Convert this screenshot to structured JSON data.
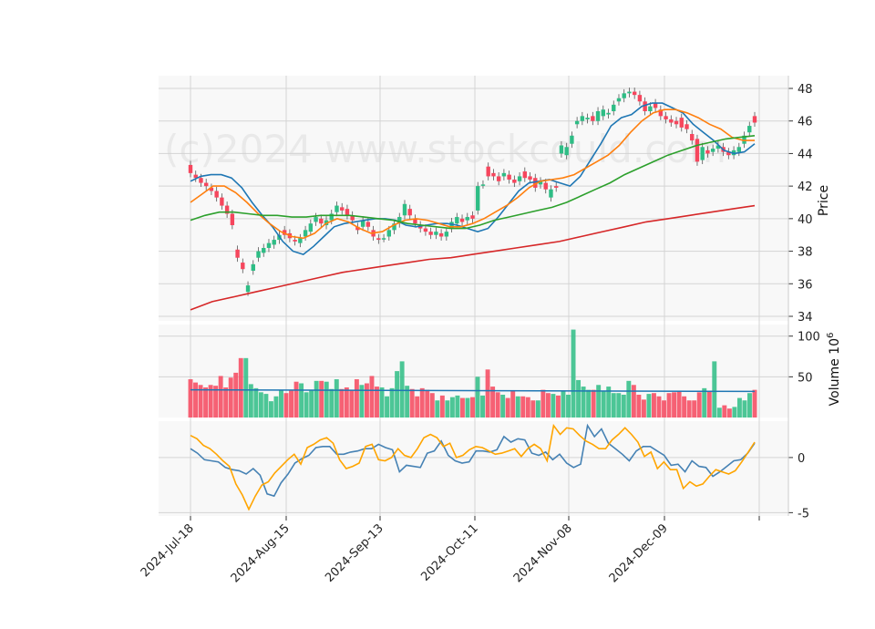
{
  "watermark": "(c)2024 www.stockcould.com",
  "chart_data": {
    "type": "candlestick",
    "grid": true,
    "price_panel": {
      "ylabel": "Price",
      "ylim": [
        34,
        48.5
      ],
      "yticks": [
        "34",
        "36",
        "38",
        "40",
        "42",
        "44",
        "46",
        "48"
      ],
      "colors": {
        "up": "#2ebd85",
        "down": "#f6465d"
      },
      "candles_description_open_close": [
        [
          43.3,
          42.8
        ],
        [
          42.7,
          42.5
        ],
        [
          42.5,
          42.2
        ],
        [
          42.2,
          42.0
        ],
        [
          41.9,
          41.7
        ],
        [
          41.7,
          41.3
        ],
        [
          41.3,
          40.8
        ],
        [
          40.8,
          40.3
        ],
        [
          40.3,
          39.6
        ],
        [
          38.1,
          37.6
        ],
        [
          37.3,
          36.9
        ],
        [
          35.5,
          35.9
        ],
        [
          36.8,
          37.2
        ],
        [
          37.6,
          38.0
        ],
        [
          37.9,
          38.2
        ],
        [
          38.2,
          38.5
        ],
        [
          38.4,
          38.7
        ],
        [
          38.7,
          39.0
        ],
        [
          39.3,
          39.0
        ],
        [
          39.1,
          38.8
        ],
        [
          38.7,
          38.6
        ],
        [
          38.5,
          38.8
        ],
        [
          38.9,
          39.3
        ],
        [
          39.2,
          39.7
        ],
        [
          39.8,
          40.1
        ],
        [
          40.0,
          39.7
        ],
        [
          39.6,
          39.9
        ],
        [
          39.9,
          40.3
        ],
        [
          40.4,
          40.8
        ],
        [
          40.7,
          40.5
        ],
        [
          40.6,
          40.2
        ],
        [
          40.2,
          39.9
        ],
        [
          39.5,
          39.3
        ],
        [
          39.5,
          39.9
        ],
        [
          39.8,
          39.5
        ],
        [
          39.3,
          38.9
        ],
        [
          38.8,
          38.7
        ],
        [
          38.8,
          38.8
        ],
        [
          38.9,
          39.3
        ],
        [
          39.3,
          39.7
        ],
        [
          39.7,
          40.1
        ],
        [
          40.2,
          40.9
        ],
        [
          40.6,
          40.2
        ],
        [
          40.0,
          39.7
        ],
        [
          39.6,
          39.4
        ],
        [
          39.4,
          39.2
        ],
        [
          39.2,
          39.0
        ],
        [
          39.0,
          39.2
        ],
        [
          39.1,
          38.9
        ],
        [
          38.9,
          39.2
        ],
        [
          39.4,
          39.8
        ],
        [
          39.7,
          40.1
        ],
        [
          40.0,
          39.8
        ],
        [
          39.9,
          40.1
        ],
        [
          40.2,
          40.0
        ],
        [
          40.5,
          42.0
        ],
        [
          42.1,
          42.1
        ],
        [
          43.2,
          42.6
        ],
        [
          42.8,
          42.6
        ],
        [
          42.6,
          42.3
        ],
        [
          42.6,
          42.8
        ],
        [
          42.7,
          42.4
        ],
        [
          42.4,
          42.2
        ],
        [
          42.3,
          42.6
        ],
        [
          42.9,
          42.5
        ],
        [
          42.6,
          42.4
        ],
        [
          42.5,
          41.9
        ],
        [
          42.1,
          42.3
        ],
        [
          42.2,
          41.8
        ],
        [
          41.3,
          41.8
        ],
        [
          42.0,
          41.9
        ],
        [
          44.0,
          44.5
        ],
        [
          43.9,
          44.4
        ],
        [
          44.6,
          45.1
        ],
        [
          45.8,
          46.0
        ],
        [
          46.0,
          46.3
        ],
        [
          46.1,
          46.2
        ],
        [
          46.3,
          46.0
        ],
        [
          46.0,
          46.6
        ],
        [
          46.3,
          46.7
        ],
        [
          46.4,
          46.5
        ],
        [
          46.6,
          47.0
        ],
        [
          47.2,
          47.4
        ],
        [
          47.4,
          47.7
        ],
        [
          47.7,
          47.8
        ],
        [
          47.8,
          47.6
        ],
        [
          47.6,
          47.2
        ],
        [
          47.2,
          46.6
        ],
        [
          46.6,
          46.9
        ],
        [
          47.1,
          46.8
        ],
        [
          46.7,
          46.3
        ],
        [
          46.3,
          46.1
        ],
        [
          46.1,
          45.9
        ],
        [
          46.0,
          45.8
        ],
        [
          46.2,
          45.6
        ],
        [
          45.8,
          45.5
        ],
        [
          45.2,
          44.8
        ],
        [
          44.9,
          43.5
        ],
        [
          43.6,
          44.4
        ],
        [
          44.2,
          44.0
        ],
        [
          44.1,
          44.3
        ],
        [
          44.3,
          44.5
        ],
        [
          44.4,
          44.1
        ],
        [
          44.1,
          43.9
        ],
        [
          43.9,
          44.2
        ],
        [
          44.1,
          44.4
        ],
        [
          44.6,
          45.1
        ],
        [
          45.3,
          45.7
        ],
        [
          46.3,
          45.9
        ]
      ],
      "moving_averages": [
        {
          "color": "#1f77b4",
          "points": [
            42.3,
            42.6,
            42.7,
            42.7,
            42.5,
            41.9,
            41.0,
            40.2,
            39.5,
            38.6,
            38.0,
            37.8,
            38.3,
            38.9,
            39.5,
            39.7,
            39.8,
            39.9,
            40.0,
            40.0,
            39.9,
            39.6,
            39.5,
            39.6,
            39.7,
            39.7,
            39.6,
            39.4,
            39.2,
            39.4,
            40.1,
            40.9,
            41.7,
            42.2,
            42.3,
            42.4,
            42.2,
            42.0,
            42.6,
            43.6,
            44.6,
            45.7,
            46.2,
            46.4,
            46.9,
            47.1,
            47.1,
            46.8,
            46.5,
            45.8,
            45.3,
            44.8,
            44.2,
            44.0,
            44.1,
            44.6
          ]
        },
        {
          "color": "#ff7f0e",
          "points": [
            41.0,
            41.5,
            42.0,
            42.0,
            41.6,
            41.0,
            40.3,
            39.7,
            39.2,
            38.9,
            38.8,
            39.1,
            39.7,
            40.0,
            39.8,
            39.4,
            39.1,
            39.2,
            39.6,
            39.9,
            40.0,
            39.9,
            39.7,
            39.5,
            39.5,
            39.7,
            40.0,
            40.4,
            40.8,
            41.3,
            41.9,
            42.3,
            42.4,
            42.5,
            42.7,
            43.1,
            43.5,
            43.9,
            44.5,
            45.3,
            46.0,
            46.5,
            46.7,
            46.7,
            46.5,
            46.2,
            45.8,
            45.5,
            45.0,
            44.8,
            44.8
          ]
        },
        {
          "color": "#2ca02c",
          "points": [
            39.9,
            40.2,
            40.4,
            40.4,
            40.3,
            40.2,
            40.2,
            40.1,
            40.1,
            40.2,
            40.2,
            40.2,
            40.1,
            40.0,
            39.9,
            39.7,
            39.6,
            39.5,
            39.4,
            39.4,
            39.6,
            39.9,
            40.1,
            40.3,
            40.5,
            40.7,
            41.0,
            41.4,
            41.8,
            42.2,
            42.7,
            43.1,
            43.5,
            43.9,
            44.2,
            44.5,
            44.7,
            44.9,
            45.0,
            45.1
          ]
        },
        {
          "color": "#d62728",
          "points": [
            34.4,
            34.9,
            35.2,
            35.5,
            35.8,
            36.1,
            36.4,
            36.7,
            36.9,
            37.1,
            37.3,
            37.5,
            37.6,
            37.8,
            38.0,
            38.2,
            38.4,
            38.6,
            38.9,
            39.2,
            39.5,
            39.8,
            40.0,
            40.2,
            40.4,
            40.6,
            40.8
          ]
        }
      ]
    },
    "volume_panel": {
      "ylabel": "Volume  10^6",
      "ylim": [
        0,
        112
      ],
      "yticks": [
        "50",
        "100"
      ],
      "ma_color": "#1f77b4",
      "ma_level": 34,
      "bars_description": [
        47,
        43,
        40,
        37,
        40,
        39,
        51,
        37,
        49,
        55,
        73,
        73,
        41,
        36,
        31,
        29,
        20,
        26,
        34,
        30,
        33,
        44,
        42,
        31,
        33,
        45,
        45,
        44,
        35,
        47,
        35,
        37,
        33,
        47,
        40,
        42,
        51,
        38,
        37,
        26,
        36,
        57,
        69,
        39,
        35,
        26,
        36,
        34,
        30,
        21,
        27,
        21,
        25,
        27,
        24,
        24,
        25,
        50,
        27,
        59,
        38,
        31,
        28,
        24,
        33,
        26,
        26,
        25,
        21,
        21,
        34,
        30,
        29,
        27,
        32,
        28,
        108,
        46,
        38,
        34,
        34,
        40,
        33,
        38,
        30,
        30,
        28,
        45,
        40,
        28,
        22,
        29,
        30,
        26,
        21,
        30,
        31,
        32,
        26,
        21,
        21,
        31,
        36,
        33,
        69,
        12,
        15,
        11,
        13,
        24,
        21,
        30,
        34
      ]
    },
    "oscillator_panel": {
      "ylim": [
        -5.3,
        3.3
      ],
      "yticks": [
        "-5",
        "0"
      ],
      "series": [
        {
          "color": "#4682b4",
          "values": [
            0.8,
            0.4,
            -0.2,
            -0.3,
            -0.4,
            -0.9,
            -1.1,
            -1.2,
            -1.5,
            -1.0,
            -1.6,
            -3.3,
            -3.5,
            -2.3,
            -1.5,
            -0.5,
            -0.1,
            0.2,
            0.9,
            1.0,
            1.0,
            0.3,
            0.3,
            0.5,
            0.6,
            0.8,
            0.8,
            1.2,
            0.9,
            0.7,
            -1.3,
            -0.7,
            -0.8,
            -0.9,
            0.4,
            0.6,
            1.5,
            0.2,
            -0.3,
            -0.5,
            -0.4,
            0.6,
            0.6,
            0.5,
            0.7,
            1.9,
            1.4,
            1.7,
            1.6,
            0.4,
            0.2,
            0.5,
            -0.2,
            0.3,
            -0.5,
            -0.9,
            -0.6,
            2.9,
            1.9,
            2.6,
            1.3,
            0.8,
            0.3,
            -0.3,
            0.6,
            1.0,
            1.0,
            0.6,
            0.2,
            -0.7,
            -0.6,
            -1.3,
            -0.3,
            -0.8,
            -0.9,
            -1.7,
            -1.3,
            -0.8,
            -0.3,
            -0.2,
            0.4,
            1.3
          ]
        },
        {
          "color": "#ffa500",
          "values": [
            2.0,
            1.7,
            1.1,
            0.8,
            0.3,
            -0.3,
            -0.8,
            -2.4,
            -3.4,
            -4.7,
            -3.5,
            -2.5,
            -2.2,
            -1.4,
            -0.8,
            -0.2,
            0.3,
            -0.6,
            0.9,
            1.2,
            1.6,
            1.8,
            1.3,
            -0.2,
            -1.0,
            -0.8,
            -0.5,
            1.0,
            1.2,
            -0.2,
            -0.3,
            0.0,
            0.8,
            0.2,
            0.0,
            0.8,
            1.8,
            2.1,
            1.8,
            1.0,
            1.3,
            0.0,
            0.2,
            0.7,
            1.0,
            0.9,
            0.6,
            0.3,
            0.4,
            0.6,
            0.8,
            0.1,
            0.8,
            1.2,
            0.8,
            -0.3,
            2.9,
            2.1,
            2.7,
            2.6,
            2.0,
            1.5,
            1.2,
            0.8,
            0.8,
            1.6,
            2.1,
            2.7,
            2.1,
            1.4,
            0.1,
            0.5,
            -1.0,
            -0.4,
            -1.1,
            -1.1,
            -2.8,
            -2.2,
            -2.6,
            -2.4,
            -1.7,
            -1.1,
            -1.3,
            -1.5,
            -1.2,
            -0.4,
            0.5,
            1.4
          ]
        }
      ]
    },
    "x_axis": {
      "ticks": [
        "2024-Jul-18",
        "2024-Aug-15",
        "2024-Sep-13",
        "2024-Oct-11",
        "2024-Nov-08",
        "2024-Dec-09"
      ]
    }
  }
}
